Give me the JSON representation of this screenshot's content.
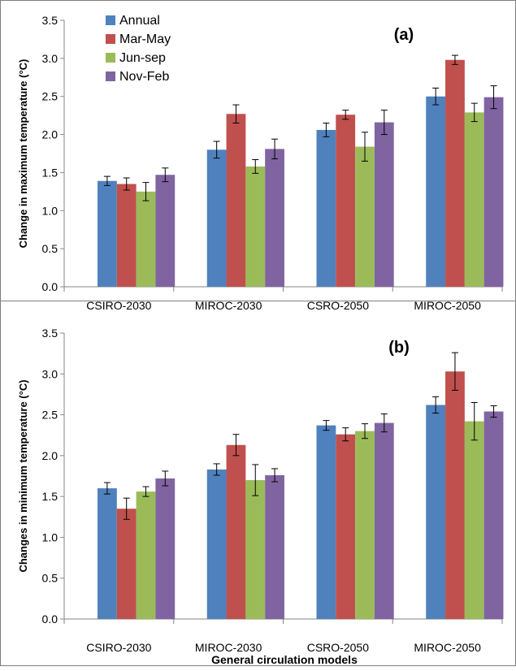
{
  "chart_data": [
    {
      "type": "bar",
      "panel_label": "(a)",
      "ylabel": "Change in  maximum temperature  (°C)",
      "xlabel": "",
      "categories": [
        "CSIRO-2030",
        "MIROC-2030",
        "CSRO-2050",
        "MIROC-2050"
      ],
      "ylim": [
        0,
        3.5
      ],
      "yticks": [
        "0.0",
        "0.5",
        "1.0",
        "1.5",
        "2.0",
        "2.5",
        "3.0",
        "3.5"
      ],
      "legend_position": "top-left",
      "series": [
        {
          "name": "Annual",
          "color": "#4F81BD",
          "values": [
            1.39,
            1.8,
            2.06,
            2.5
          ],
          "errors": [
            0.06,
            0.11,
            0.09,
            0.11
          ]
        },
        {
          "name": "Mar-May",
          "color": "#C0504D",
          "values": [
            1.35,
            2.27,
            2.26,
            2.98
          ],
          "errors": [
            0.08,
            0.12,
            0.06,
            0.06
          ]
        },
        {
          "name": "Jun-sep",
          "color": "#9BBB59",
          "values": [
            1.25,
            1.58,
            1.84,
            2.29
          ],
          "errors": [
            0.12,
            0.09,
            0.19,
            0.12
          ]
        },
        {
          "name": "Nov-Feb",
          "color": "#8064A2",
          "values": [
            1.47,
            1.81,
            2.16,
            2.49
          ],
          "errors": [
            0.09,
            0.13,
            0.16,
            0.15
          ]
        }
      ]
    },
    {
      "type": "bar",
      "panel_label": "(b)",
      "ylabel": "Changes in minimum temperature (°C)",
      "xlabel": "General circulation models",
      "categories": [
        "CSIRO-2030",
        "MIROC-2030",
        "CSRO-2050",
        "MIROC-2050"
      ],
      "ylim": [
        0,
        3.5
      ],
      "yticks": [
        "0.0",
        "0.5",
        "1.0",
        "1.5",
        "2.0",
        "2.5",
        "3.0",
        "3.5"
      ],
      "series": [
        {
          "name": "Annual",
          "color": "#4F81BD",
          "values": [
            1.6,
            1.83,
            2.37,
            2.62
          ],
          "errors": [
            0.07,
            0.07,
            0.06,
            0.1
          ]
        },
        {
          "name": "Mar-May",
          "color": "#C0504D",
          "values": [
            1.35,
            2.13,
            2.26,
            3.03
          ],
          "errors": [
            0.13,
            0.13,
            0.08,
            0.23
          ]
        },
        {
          "name": "Jun-sep",
          "color": "#9BBB59",
          "values": [
            1.56,
            1.7,
            2.3,
            2.42
          ],
          "errors": [
            0.06,
            0.19,
            0.09,
            0.23
          ]
        },
        {
          "name": "Nov-Feb",
          "color": "#8064A2",
          "values": [
            1.72,
            1.76,
            2.4,
            2.54
          ],
          "errors": [
            0.09,
            0.08,
            0.11,
            0.07
          ]
        }
      ]
    }
  ]
}
